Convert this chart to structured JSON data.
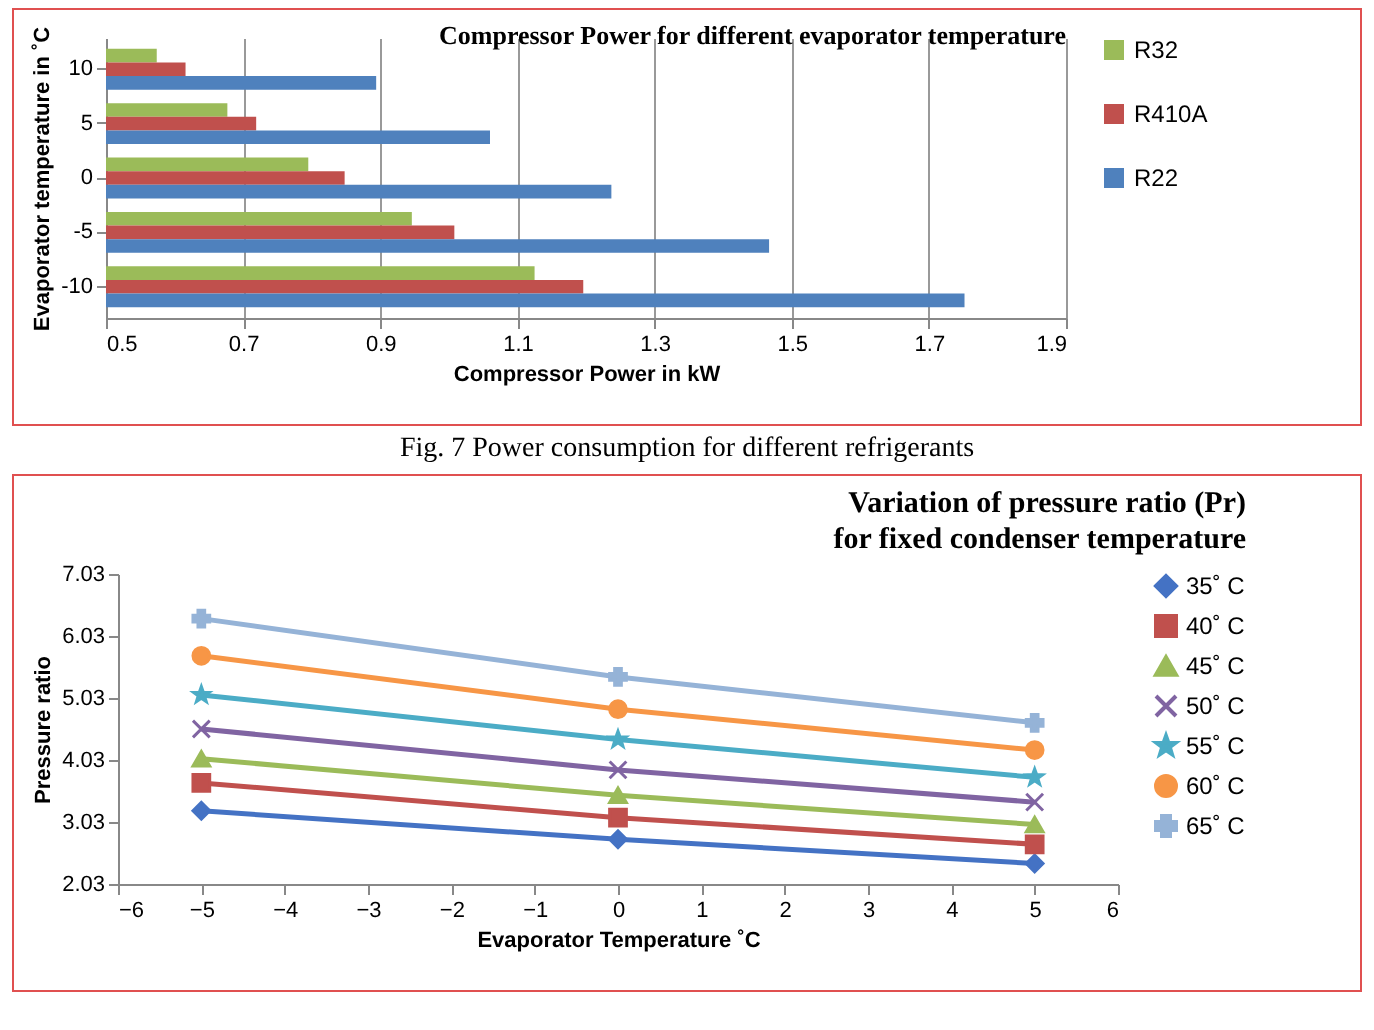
{
  "chart_data": [
    {
      "type": "bar",
      "orientation": "horizontal",
      "title": "Compressor  Power  for different  evaporator  temperature",
      "xlabel": "Compressor Power in kW",
      "ylabel": "Evaporator temperature in ˚C",
      "annotations": [
        "Fig. 7 Power consumption for different refrigerants"
      ],
      "categories": [
        "10",
        "5",
        "0",
        "-5",
        "-10"
      ],
      "series": [
        {
          "name": "R32",
          "color": "#9bbb59",
          "values": [
            0.574,
            0.677,
            0.795,
            0.946,
            1.125
          ]
        },
        {
          "name": "R410A",
          "color": "#c0504d",
          "values": [
            0.616,
            0.719,
            0.848,
            1.008,
            1.196
          ]
        },
        {
          "name": "R22",
          "color": "#4f81bd",
          "values": [
            0.894,
            1.06,
            1.237,
            1.467,
            1.752
          ]
        }
      ],
      "xlim": [
        0.5,
        1.9
      ],
      "xticks": [
        0.5,
        0.7,
        0.9,
        1.1,
        1.3,
        1.5,
        1.7,
        1.9
      ],
      "grid": "x",
      "legend": "right"
    },
    {
      "type": "line",
      "title": "Variation of pressure ratio (Pr)",
      "subtitle": "for fixed condenser temperature",
      "xlabel": "Evaporator  Temperature ˚C",
      "ylabel": "Pressure ratio",
      "x": [
        -5,
        0,
        5
      ],
      "series": [
        {
          "name": "35˚ C",
          "color": "#4472c4",
          "marker": "diamond",
          "values": [
            3.21,
            2.75,
            2.36
          ]
        },
        {
          "name": "40˚ C",
          "color": "#c0504d",
          "marker": "square",
          "values": [
            3.66,
            3.1,
            2.67
          ]
        },
        {
          "name": "45˚ C",
          "color": "#9bbb59",
          "marker": "triangle",
          "values": [
            4.05,
            3.46,
            2.99
          ]
        },
        {
          "name": "50˚ C",
          "color": "#8064a2",
          "marker": "cross",
          "values": [
            4.53,
            3.87,
            3.35
          ]
        },
        {
          "name": "55˚ C",
          "color": "#4bacc6",
          "marker": "star",
          "values": [
            5.08,
            4.36,
            3.75
          ]
        },
        {
          "name": "60˚ C",
          "color": "#f79646",
          "marker": "circle",
          "values": [
            5.71,
            4.85,
            4.19
          ]
        },
        {
          "name": "65˚ C",
          "color": "#95b3d7",
          "marker": "plus",
          "values": [
            6.31,
            5.37,
            4.63
          ]
        }
      ],
      "xlim": [
        -6,
        6
      ],
      "xticks": [
        -6,
        -5,
        -4,
        -3,
        -2,
        -1,
        0,
        1,
        2,
        3,
        4,
        5,
        6
      ],
      "ylim": [
        2.03,
        7.03
      ],
      "yticks": [
        2.03,
        3.03,
        4.03,
        5.03,
        6.03,
        7.03
      ],
      "grid": false,
      "legend": "right",
      "line_style": "solid"
    }
  ]
}
